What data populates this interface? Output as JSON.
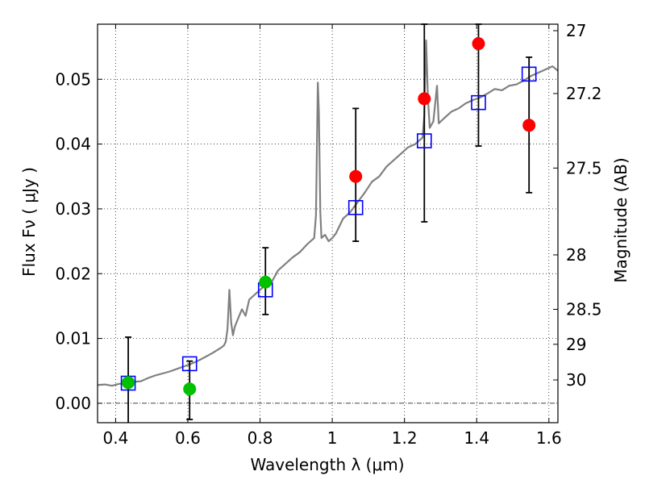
{
  "chart_data": {
    "type": "scatter",
    "xlabel": "Wavelength  λ (μm)",
    "ylabel": "Flux  Fν  ( μJy )",
    "y2label": "Magnitude (AB)",
    "xlim": [
      0.35,
      1.625
    ],
    "ylim": [
      -0.003,
      0.0585
    ],
    "grid": true,
    "x_ticks": [
      {
        "value": 0.4,
        "label": "0.4"
      },
      {
        "value": 0.6,
        "label": "0.6"
      },
      {
        "value": 0.8,
        "label": "0.8"
      },
      {
        "value": 1.0,
        "label": "1"
      },
      {
        "value": 1.2,
        "label": "1.2"
      },
      {
        "value": 1.4,
        "label": "1.4"
      },
      {
        "value": 1.6,
        "label": "1.6"
      }
    ],
    "y_ticks": [
      {
        "value": 0.0,
        "label": "0.00"
      },
      {
        "value": 0.01,
        "label": "0.01"
      },
      {
        "value": 0.02,
        "label": "0.02"
      },
      {
        "value": 0.03,
        "label": "0.03"
      },
      {
        "value": 0.04,
        "label": "0.04"
      },
      {
        "value": 0.05,
        "label": "0.05"
      }
    ],
    "y2_ticks": [
      {
        "flux": 0.0575,
        "label": "27"
      },
      {
        "flux": 0.0478,
        "label": "27.2"
      },
      {
        "flux": 0.0363,
        "label": "27.5"
      },
      {
        "flux": 0.0229,
        "label": "28"
      },
      {
        "flux": 0.0145,
        "label": "28.5"
      },
      {
        "flux": 0.0091,
        "label": "29"
      },
      {
        "flux": 0.0036,
        "label": "30"
      }
    ],
    "series": [
      {
        "kind": "line",
        "color": "#808080",
        "points": [
          [
            0.35,
            0.0028
          ],
          [
            0.37,
            0.0029
          ],
          [
            0.39,
            0.0027
          ],
          [
            0.41,
            0.003
          ],
          [
            0.43,
            0.0031
          ],
          [
            0.45,
            0.0033
          ],
          [
            0.47,
            0.0034
          ],
          [
            0.49,
            0.0039
          ],
          [
            0.51,
            0.0043
          ],
          [
            0.53,
            0.0046
          ],
          [
            0.55,
            0.0049
          ],
          [
            0.57,
            0.0053
          ],
          [
            0.59,
            0.0057
          ],
          [
            0.61,
            0.0061
          ],
          [
            0.63,
            0.0066
          ],
          [
            0.65,
            0.0072
          ],
          [
            0.67,
            0.0078
          ],
          [
            0.69,
            0.0085
          ],
          [
            0.7,
            0.0089
          ],
          [
            0.705,
            0.0095
          ],
          [
            0.71,
            0.0115
          ],
          [
            0.715,
            0.0175
          ],
          [
            0.72,
            0.0125
          ],
          [
            0.725,
            0.0105
          ],
          [
            0.73,
            0.0118
          ],
          [
            0.74,
            0.0132
          ],
          [
            0.75,
            0.0145
          ],
          [
            0.76,
            0.0135
          ],
          [
            0.77,
            0.016
          ],
          [
            0.79,
            0.017
          ],
          [
            0.81,
            0.018
          ],
          [
            0.83,
            0.0185
          ],
          [
            0.85,
            0.0205
          ],
          [
            0.87,
            0.0215
          ],
          [
            0.89,
            0.0225
          ],
          [
            0.91,
            0.0233
          ],
          [
            0.93,
            0.0245
          ],
          [
            0.95,
            0.0255
          ],
          [
            0.955,
            0.029
          ],
          [
            0.96,
            0.0495
          ],
          [
            0.963,
            0.045
          ],
          [
            0.967,
            0.0295
          ],
          [
            0.97,
            0.0255
          ],
          [
            0.98,
            0.026
          ],
          [
            0.99,
            0.025
          ],
          [
            1.0,
            0.0255
          ],
          [
            1.01,
            0.0262
          ],
          [
            1.03,
            0.0285
          ],
          [
            1.05,
            0.0295
          ],
          [
            1.07,
            0.031
          ],
          [
            1.09,
            0.0325
          ],
          [
            1.11,
            0.0342
          ],
          [
            1.13,
            0.035
          ],
          [
            1.15,
            0.0365
          ],
          [
            1.17,
            0.0375
          ],
          [
            1.19,
            0.0385
          ],
          [
            1.21,
            0.0395
          ],
          [
            1.23,
            0.04
          ],
          [
            1.25,
            0.041
          ],
          [
            1.255,
            0.0445
          ],
          [
            1.26,
            0.056
          ],
          [
            1.265,
            0.047
          ],
          [
            1.27,
            0.0425
          ],
          [
            1.28,
            0.0435
          ],
          [
            1.29,
            0.049
          ],
          [
            1.295,
            0.0432
          ],
          [
            1.31,
            0.044
          ],
          [
            1.33,
            0.045
          ],
          [
            1.35,
            0.0455
          ],
          [
            1.37,
            0.0463
          ],
          [
            1.39,
            0.0468
          ],
          [
            1.41,
            0.0472
          ],
          [
            1.43,
            0.0478
          ],
          [
            1.45,
            0.0485
          ],
          [
            1.47,
            0.0483
          ],
          [
            1.49,
            0.049
          ],
          [
            1.51,
            0.0492
          ],
          [
            1.53,
            0.0498
          ],
          [
            1.55,
            0.0505
          ],
          [
            1.57,
            0.051
          ],
          [
            1.59,
            0.0515
          ],
          [
            1.61,
            0.052
          ],
          [
            1.625,
            0.0513
          ]
        ]
      },
      {
        "kind": "errorbar",
        "color": "#000000",
        "bars": [
          {
            "x": 0.435,
            "low": -0.0035,
            "high": 0.0102
          },
          {
            "x": 0.605,
            "low": -0.0025,
            "high": 0.0065
          },
          {
            "x": 0.815,
            "low": 0.0137,
            "high": 0.024
          },
          {
            "x": 1.065,
            "low": 0.025,
            "high": 0.0455
          },
          {
            "x": 1.255,
            "low": 0.028,
            "high": 0.0585
          },
          {
            "x": 1.405,
            "low": 0.0397,
            "high": 0.0585
          },
          {
            "x": 1.545,
            "low": 0.0325,
            "high": 0.0534
          }
        ]
      },
      {
        "kind": "open-square",
        "color": "#0000ff",
        "points": [
          [
            0.435,
            0.0031
          ],
          [
            0.605,
            0.0061
          ],
          [
            0.815,
            0.0175
          ],
          [
            1.065,
            0.0302
          ],
          [
            1.255,
            0.0405
          ],
          [
            1.405,
            0.0464
          ],
          [
            1.545,
            0.0508
          ]
        ]
      },
      {
        "kind": "dot",
        "color": "#00c000",
        "points": [
          [
            0.435,
            0.0032
          ],
          [
            0.605,
            0.0022
          ],
          [
            0.815,
            0.0187
          ]
        ]
      },
      {
        "kind": "dot",
        "color": "#ff0000",
        "points": [
          [
            1.065,
            0.035
          ],
          [
            1.255,
            0.047
          ],
          [
            1.405,
            0.0555
          ],
          [
            1.545,
            0.0429
          ]
        ]
      }
    ]
  }
}
